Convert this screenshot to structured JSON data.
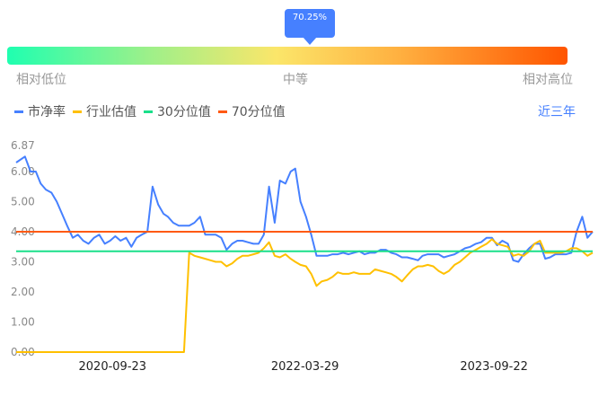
{
  "gauge": {
    "percentile_label": "70.25%",
    "percentile": 70.25,
    "low_label": "相对低位",
    "mid_label": "中等",
    "high_label": "相对高位"
  },
  "legend": [
    {
      "label": "市净率",
      "color": "#4680ff"
    },
    {
      "label": "行业估值",
      "color": "#ffc000"
    },
    {
      "label": "30分位值",
      "color": "#1adf8a"
    },
    {
      "label": "70分位值",
      "color": "#ff5a14"
    }
  ],
  "range_label": "近三年",
  "chart_data": {
    "type": "line",
    "ylim": [
      0,
      6.87
    ],
    "yticks": [
      "0.00",
      "1.00",
      "2.00",
      "3.00",
      "4.00",
      "5.00",
      "6.00",
      "6.87"
    ],
    "xticks": [
      "2020-09-23",
      "2022-03-29",
      "2023-09-22"
    ],
    "grid": false,
    "x": [
      "2020-01-01",
      "2020-01-16",
      "2020-02-01",
      "2020-02-16",
      "2020-03-01",
      "2020-03-16",
      "2020-04-01",
      "2020-04-16",
      "2020-05-01",
      "2020-05-16",
      "2020-06-01",
      "2020-06-16",
      "2020-07-01",
      "2020-07-16",
      "2020-08-01",
      "2020-08-16",
      "2020-09-01",
      "2020-09-16",
      "2020-10-01",
      "2020-10-16",
      "2020-11-01",
      "2020-11-16",
      "2020-12-01",
      "2020-12-16",
      "2021-01-01",
      "2021-01-16",
      "2021-02-01",
      "2021-02-16",
      "2021-03-01",
      "2021-03-16",
      "2021-04-01",
      "2021-04-16",
      "2021-05-01",
      "2021-05-16",
      "2021-06-01",
      "2021-06-16",
      "2021-07-01",
      "2021-07-16",
      "2021-08-01",
      "2021-08-16",
      "2021-09-01",
      "2021-09-16",
      "2021-10-01",
      "2021-10-16",
      "2021-11-01",
      "2021-11-16",
      "2021-12-01",
      "2021-12-16",
      "2022-01-01",
      "2022-01-16",
      "2022-02-01",
      "2022-02-16",
      "2022-03-01",
      "2022-03-16",
      "2022-04-01",
      "2022-04-16",
      "2022-05-01",
      "2022-05-16",
      "2022-06-01",
      "2022-06-16",
      "2022-07-01",
      "2022-07-16",
      "2022-08-01",
      "2022-08-16",
      "2022-09-01",
      "2022-09-16",
      "2022-10-01",
      "2022-10-16",
      "2022-11-01",
      "2022-11-16",
      "2022-12-01",
      "2022-12-16",
      "2023-01-01",
      "2023-01-16",
      "2023-02-01",
      "2023-02-16",
      "2023-03-01",
      "2023-03-16",
      "2023-04-01",
      "2023-04-16",
      "2023-05-01",
      "2023-05-16",
      "2023-06-01",
      "2023-06-16",
      "2023-07-01",
      "2023-07-16",
      "2023-08-01",
      "2023-08-16",
      "2023-09-01",
      "2023-09-16",
      "2023-10-01",
      "2023-10-16",
      "2023-11-01",
      "2023-11-16",
      "2023-12-01",
      "2023-12-16",
      "2024-01-01",
      "2024-01-16",
      "2024-02-01",
      "2024-02-16",
      "2024-03-01",
      "2024-03-16",
      "2024-04-01",
      "2024-04-16",
      "2024-05-01",
      "2024-05-16",
      "2024-06-01",
      "2024-06-16",
      "2024-07-01"
    ],
    "series": [
      {
        "name": "市净率",
        "color": "#4680ff",
        "values": [
          6.3,
          6.5,
          6.0,
          6.0,
          5.6,
          5.4,
          5.3,
          5.0,
          4.6,
          4.2,
          3.8,
          3.9,
          3.7,
          3.6,
          3.8,
          3.9,
          3.6,
          3.7,
          3.85,
          3.7,
          3.8,
          3.5,
          3.8,
          3.9,
          4.0,
          5.5,
          4.9,
          4.6,
          4.5,
          4.3,
          4.2,
          4.2,
          4.2,
          4.3,
          4.5,
          3.9,
          3.9,
          3.9,
          3.8,
          3.4,
          3.6,
          3.7,
          3.7,
          3.65,
          3.6,
          3.6,
          3.9,
          5.5,
          4.3,
          5.7,
          5.6,
          6.0,
          6.1,
          5.0,
          4.5,
          3.9,
          3.2,
          3.2,
          3.2,
          3.25,
          3.25,
          3.3,
          3.25,
          3.3,
          3.35,
          3.25,
          3.3,
          3.3,
          3.4,
          3.4,
          3.3,
          3.25,
          3.15,
          3.15,
          3.1,
          3.05,
          3.2,
          3.25,
          3.25,
          3.25,
          3.15,
          3.2,
          3.25,
          3.35,
          3.45,
          3.5,
          3.6,
          3.65,
          3.8,
          3.8,
          3.55,
          3.7,
          3.6,
          3.05,
          3.0,
          3.25,
          3.45,
          3.6,
          3.6,
          3.1,
          3.15,
          3.25,
          3.25,
          3.25,
          3.3,
          4.0,
          4.5,
          3.8,
          4.0
        ]
      },
      {
        "name": "行业估值",
        "color": "#ffc000",
        "values": [
          0,
          0,
          0,
          0,
          0,
          0,
          0,
          0,
          0,
          0,
          0,
          0,
          0,
          0,
          0,
          0,
          0,
          0,
          0,
          0,
          0,
          0,
          0,
          0,
          0,
          0,
          0,
          0,
          0,
          0,
          0,
          0,
          3.3,
          3.2,
          3.15,
          3.1,
          3.05,
          3.0,
          3.0,
          2.85,
          2.95,
          3.1,
          3.2,
          3.2,
          3.25,
          3.3,
          3.45,
          3.65,
          3.2,
          3.15,
          3.25,
          3.1,
          3.0,
          2.9,
          2.85,
          2.6,
          2.2,
          2.35,
          2.4,
          2.5,
          2.65,
          2.6,
          2.6,
          2.65,
          2.6,
          2.6,
          2.6,
          2.75,
          2.7,
          2.65,
          2.6,
          2.5,
          2.35,
          2.55,
          2.75,
          2.85,
          2.85,
          2.9,
          2.85,
          2.7,
          2.6,
          2.7,
          2.9,
          3.0,
          3.15,
          3.3,
          3.4,
          3.5,
          3.6,
          3.75,
          3.6,
          3.55,
          3.5,
          3.2,
          3.25,
          3.2,
          3.35,
          3.6,
          3.7,
          3.3,
          3.3,
          3.3,
          3.3,
          3.35,
          3.45,
          3.45,
          3.35,
          3.2,
          3.3
        ]
      },
      {
        "name": "30分位值",
        "color": "#1adf8a",
        "constant": 3.35
      },
      {
        "name": "70分位值",
        "color": "#ff5a14",
        "constant": 4.0
      }
    ]
  }
}
